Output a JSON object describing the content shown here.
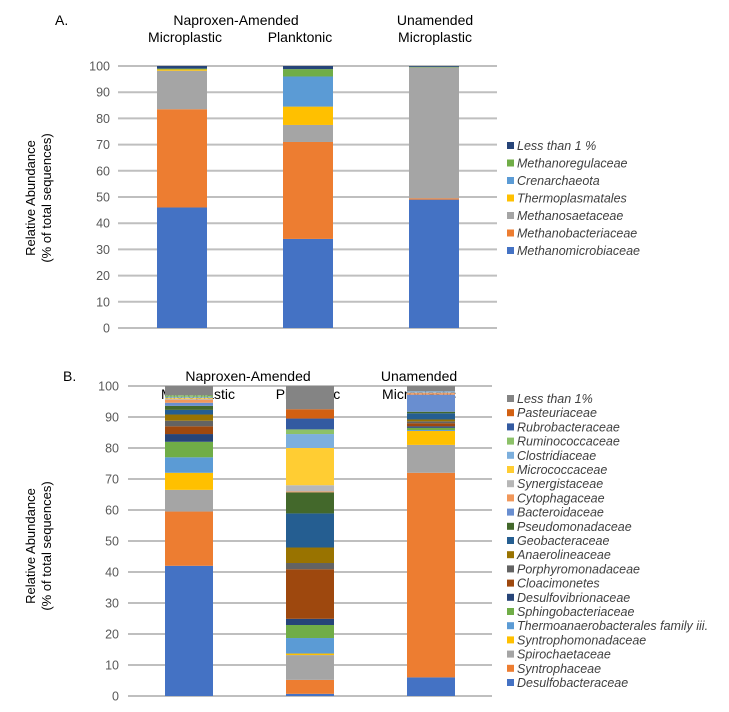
{
  "chart_data": [
    {
      "type": "bar",
      "stacked": true,
      "panel_label": "A.",
      "group_headers": [
        {
          "line1": "Naproxen-Amended",
          "line2_left": "Microplastic",
          "line2_right": "Planktonic"
        },
        {
          "line1": "Unamended",
          "line2": "Microplastic"
        }
      ],
      "categories": [
        "Naproxen-Amended Microplastic",
        "Naproxen-Amended Planktonic",
        "Unamended Microplastic"
      ],
      "ylabel": "Relative Abundance",
      "ylabel2": "(% of total sequences)",
      "xlabel": "",
      "ylim": [
        0,
        100
      ],
      "yticks": [
        0,
        10,
        20,
        30,
        40,
        50,
        60,
        70,
        80,
        90,
        100
      ],
      "grid": true,
      "legend_position": "right",
      "series": [
        {
          "name": "Methanomicrobiaceae",
          "color": "#4472C4",
          "values": [
            46,
            34,
            49
          ]
        },
        {
          "name": "Methanobacteriaceae",
          "color": "#ED7D31",
          "values": [
            37.5,
            37,
            0.5
          ]
        },
        {
          "name": "Methanosaetaceae",
          "color": "#A5A5A5",
          "values": [
            14.7,
            6.5,
            50
          ]
        },
        {
          "name": "Thermoplasmatales",
          "color": "#FFC000",
          "values": [
            0.5,
            7,
            0
          ]
        },
        {
          "name": "Crenarchaeota",
          "color": "#5B9BD5",
          "values": [
            0,
            11.5,
            0
          ]
        },
        {
          "name": "Methanoregulaceae",
          "color": "#70AD47",
          "values": [
            0.3,
            2.8,
            0.2
          ]
        },
        {
          "name": "Less than 1 %",
          "color": "#264478",
          "values": [
            1.0,
            1.2,
            0.3
          ]
        }
      ]
    },
    {
      "type": "bar",
      "stacked": true,
      "panel_label": "B.",
      "group_headers": [
        {
          "line1": "Naproxen-Amended",
          "line2_left": "Microplastic",
          "line2_right": "Planktonic"
        },
        {
          "line1": "Unamended",
          "line2": "Microplastic"
        }
      ],
      "categories": [
        "Naproxen-Amended Microplastic",
        "Naproxen-Amended Planktonic",
        "Unamended Microplastic"
      ],
      "ylabel": "Relative Abundance",
      "ylabel2": "(% of total sequences)",
      "xlabel": "",
      "ylim": [
        0,
        100
      ],
      "yticks": [
        0,
        10,
        20,
        30,
        40,
        50,
        60,
        70,
        80,
        90,
        100
      ],
      "grid": true,
      "legend_position": "right",
      "series": [
        {
          "name": "Desulfobacteraceae",
          "color": "#4472C4",
          "values": [
            42,
            0.7,
            6
          ]
        },
        {
          "name": "Syntrophaceae",
          "color": "#ED7D31",
          "values": [
            17.5,
            4.5,
            66
          ]
        },
        {
          "name": "Spirochaetaceae",
          "color": "#A5A5A5",
          "values": [
            7,
            8,
            9
          ]
        },
        {
          "name": "Syntrophomonadaceae",
          "color": "#FFC000",
          "values": [
            5.5,
            0.5,
            4.5
          ]
        },
        {
          "name": "Thermoanaerobacterales family iii.",
          "color": "#5B9BD5",
          "values": [
            5,
            5,
            0.3
          ]
        },
        {
          "name": "Sphingobacteriaceae",
          "color": "#70AD47",
          "values": [
            5,
            4.2,
            0.7
          ]
        },
        {
          "name": "Desulfovibrionaceae",
          "color": "#264478",
          "values": [
            2.5,
            2,
            0.5
          ]
        },
        {
          "name": "Cloacimonetes",
          "color": "#9E480E",
          "values": [
            2.5,
            16,
            1
          ]
        },
        {
          "name": "Porphyromonadaceae",
          "color": "#636363",
          "values": [
            1.8,
            2,
            0.6
          ]
        },
        {
          "name": "Anaerolineaceae",
          "color": "#997300",
          "values": [
            2,
            5,
            0.6
          ]
        },
        {
          "name": "Geobacteraceae",
          "color": "#255E91",
          "values": [
            1.5,
            11,
            2
          ]
        },
        {
          "name": "Pseudomonadaceae",
          "color": "#43682B",
          "values": [
            1.3,
            6.8,
            0.5
          ]
        },
        {
          "name": "Bacteroidaceae",
          "color": "#698ED0",
          "values": [
            1,
            0,
            5.5
          ]
        },
        {
          "name": "Cytophagaceae",
          "color": "#F1975A",
          "values": [
            1,
            0.3,
            0.5
          ]
        },
        {
          "name": "Synergistaceae",
          "color": "#B7B7B7",
          "values": [
            0.3,
            2,
            0.3
          ]
        },
        {
          "name": "Micrococcaceae",
          "color": "#FFCD33",
          "values": [
            0.3,
            12,
            0
          ]
        },
        {
          "name": "Clostridiaceae",
          "color": "#7CAFDD",
          "values": [
            0.3,
            4.5,
            0.3
          ]
        },
        {
          "name": "Ruminococcaceae",
          "color": "#8CC168",
          "values": [
            0.5,
            1.5,
            0
          ]
        },
        {
          "name": "Rubrobacteraceae",
          "color": "#335AA1",
          "values": [
            0,
            3.5,
            0
          ]
        },
        {
          "name": "Pasteuriaceae",
          "color": "#D26012",
          "values": [
            0,
            3,
            0
          ]
        },
        {
          "name": "Less than 1%",
          "color": "#848484",
          "values": [
            3,
            7.5,
            1.7
          ]
        }
      ]
    }
  ]
}
